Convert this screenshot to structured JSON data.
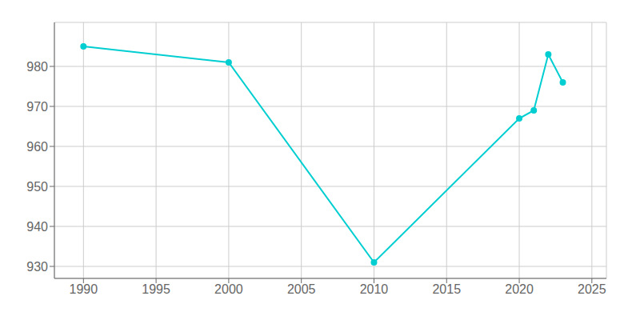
{
  "chart_data": {
    "type": "line",
    "x": [
      1990,
      2000,
      2010,
      2020,
      2021,
      2022,
      2023
    ],
    "values": [
      985,
      981,
      931,
      967,
      969,
      983,
      976
    ],
    "color": "#00CED1",
    "marker": "o",
    "xlim": [
      1988,
      2026
    ],
    "ylim": [
      927,
      991
    ],
    "xticks": [
      1990,
      1995,
      2000,
      2005,
      2010,
      2015,
      2020,
      2025
    ],
    "yticks": [
      930,
      940,
      950,
      960,
      970,
      980
    ],
    "grid": true
  }
}
